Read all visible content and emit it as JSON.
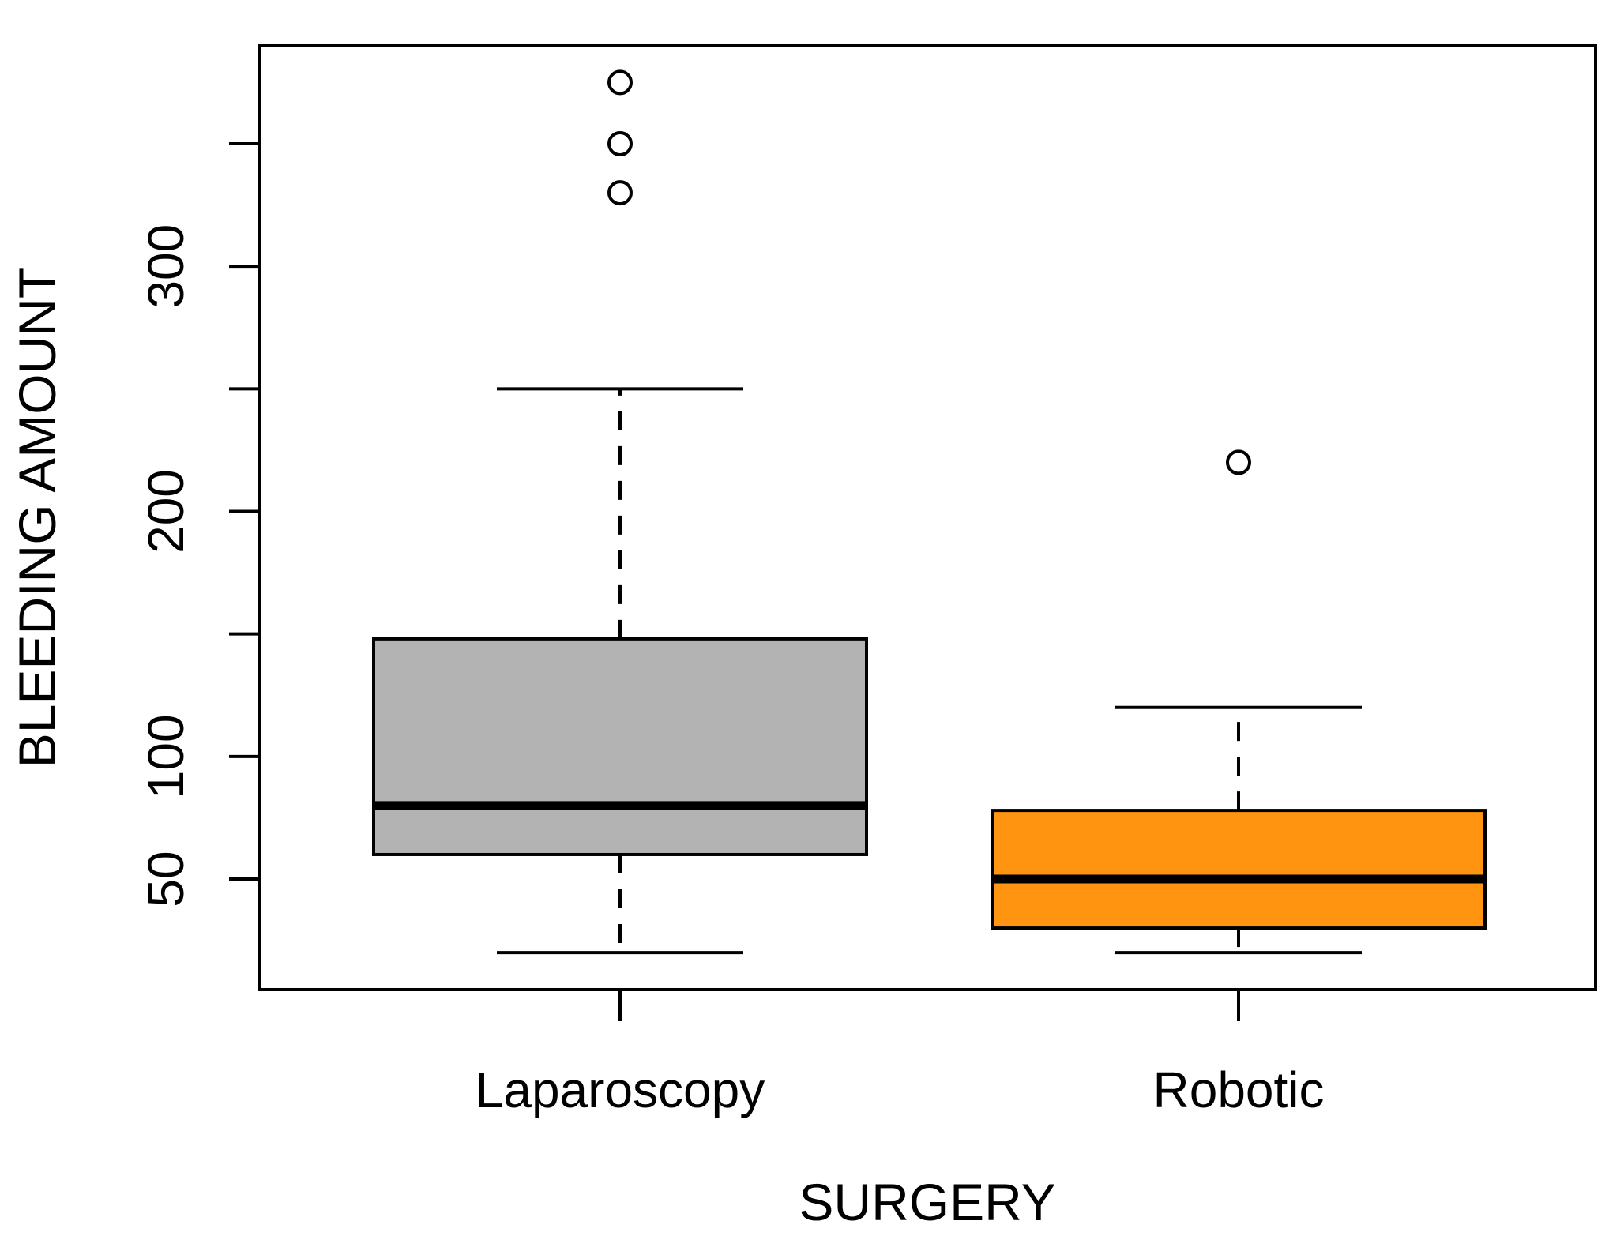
{
  "chart_data": {
    "type": "boxplot",
    "xlabel": "SURGERY",
    "ylabel": "BLEEDING AMOUNT",
    "ylim": [
      15,
      390
    ],
    "yticks": [
      50,
      100,
      150,
      200,
      250,
      300,
      350
    ],
    "ytick_labels": [
      "50",
      "100",
      "",
      "200",
      "",
      "300",
      ""
    ],
    "categories": [
      "Laparoscopy",
      "Robotic"
    ],
    "grid": false,
    "legend": "none",
    "boxes": [
      {
        "category": "Laparoscopy",
        "color": "#b3b3b3",
        "whisker_low": 20,
        "q1": 60,
        "median": 80,
        "q3": 148,
        "whisker_high": 250,
        "outliers": [
          330,
          350,
          375
        ]
      },
      {
        "category": "Robotic",
        "color": "#ff9410",
        "whisker_low": 20,
        "q1": 30,
        "median": 50,
        "q3": 78,
        "whisker_high": 120,
        "outliers": [
          220
        ]
      }
    ]
  }
}
